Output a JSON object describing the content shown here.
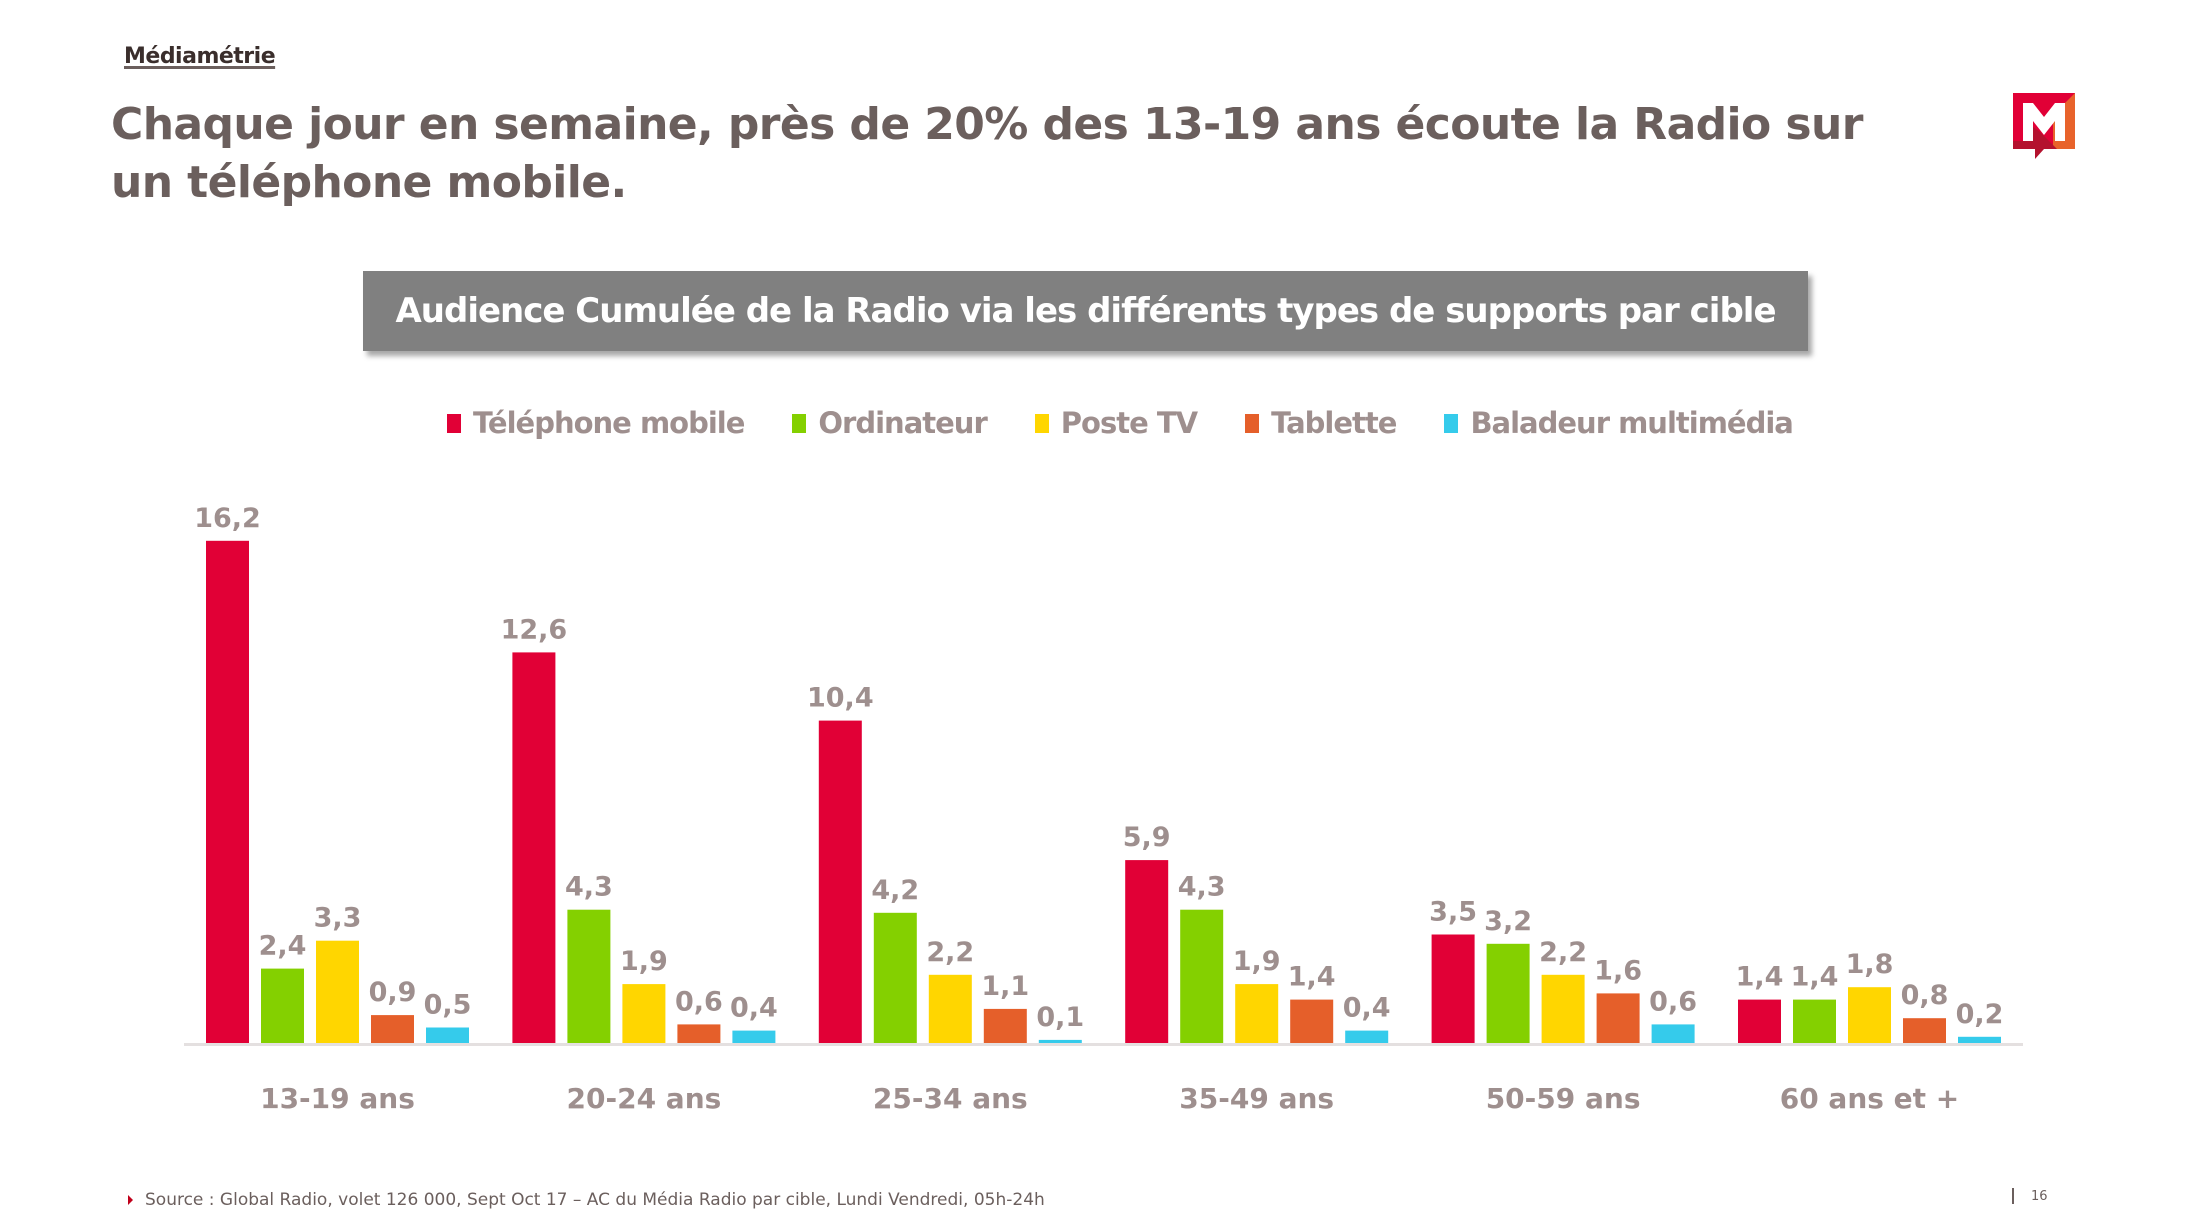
{
  "header": {
    "brand": "Médiamétrie",
    "title": "Chaque jour en semaine, près de 20% des 13-19 ans écoute la Radio sur un téléphone mobile.",
    "logo_icon": "mediametrie-m-logo-icon"
  },
  "chart_data": {
    "type": "bar",
    "title": "Audience Cumulée de la Radio via les différents types de supports par cible",
    "xlabel": "",
    "ylabel": "",
    "ylim": [
      0,
      17
    ],
    "grid": false,
    "legend_position": "top-center",
    "value_format": "comma-decimal",
    "categories": [
      "13-19 ans",
      "20-24 ans",
      "25-34 ans",
      "35-49 ans",
      "50-59 ans",
      "60 ans et +"
    ],
    "series": [
      {
        "name": "Téléphone mobile",
        "color": "#e10036",
        "values": [
          16.2,
          12.6,
          10.4,
          5.9,
          3.5,
          1.4
        ],
        "labels": [
          "16,2",
          "12,6",
          "10,4",
          "5,9",
          "3,5",
          "1,4"
        ]
      },
      {
        "name": "Ordinateur",
        "color": "#84d000",
        "values": [
          2.4,
          4.3,
          4.2,
          4.3,
          3.2,
          1.4
        ],
        "labels": [
          "2,4",
          "4,3",
          "4,2",
          "4,3",
          "3,2",
          "1,4"
        ]
      },
      {
        "name": "Poste TV",
        "color": "#ffd600",
        "values": [
          3.3,
          1.9,
          2.2,
          1.9,
          2.2,
          1.8
        ],
        "labels": [
          "3,3",
          "1,9",
          "2,2",
          "1,9",
          "2,2",
          "1,8"
        ]
      },
      {
        "name": "Tablette",
        "color": "#e55f2a",
        "values": [
          0.9,
          0.6,
          1.1,
          1.4,
          1.6,
          0.8
        ],
        "labels": [
          "0,9",
          "0,6",
          "1,1",
          "1,4",
          "1,6",
          "0,8"
        ]
      },
      {
        "name": "Baladeur multimédia",
        "color": "#35cbeb",
        "values": [
          0.5,
          0.4,
          0.1,
          0.4,
          0.6,
          0.2
        ],
        "labels": [
          "0,5",
          "0,4",
          "0,1",
          "0,4",
          "0,6",
          "0,2"
        ]
      }
    ]
  },
  "footer": {
    "source": "Source : Global Radio, volet 126 000, Sept Oct 17 – AC du Média Radio par cible, Lundi Vendredi, 05h-24h",
    "page_number": "16"
  }
}
